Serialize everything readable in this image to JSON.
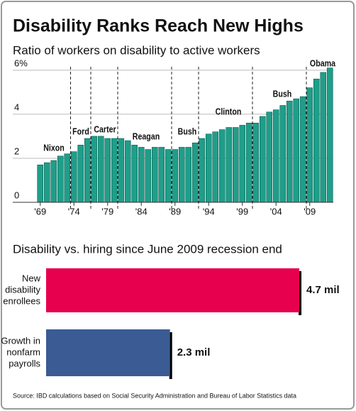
{
  "chart_data": [
    {
      "type": "bar",
      "title": "Disability Ranks Reach New Highs",
      "subtitle": "Ratio of workers on disability to active workers",
      "categories": [
        "'69",
        null,
        null,
        null,
        null,
        "'74",
        null,
        null,
        null,
        null,
        "'79",
        null,
        null,
        null,
        null,
        "'84",
        null,
        null,
        null,
        null,
        "'89",
        null,
        null,
        null,
        null,
        "'94",
        null,
        null,
        null,
        null,
        "'99",
        null,
        null,
        null,
        null,
        "'04",
        null,
        null,
        null,
        null,
        "'09",
        null,
        null,
        null
      ],
      "values": [
        1.7,
        1.8,
        1.9,
        2.1,
        2.2,
        2.3,
        2.6,
        2.9,
        3.0,
        3.0,
        2.9,
        2.9,
        2.9,
        2.8,
        2.6,
        2.5,
        2.4,
        2.5,
        2.5,
        2.4,
        2.4,
        2.5,
        2.5,
        2.7,
        2.9,
        3.1,
        3.2,
        3.3,
        3.4,
        3.4,
        3.5,
        3.6,
        3.6,
        3.9,
        4.1,
        4.2,
        4.4,
        4.6,
        4.7,
        4.8,
        5.2,
        5.6,
        5.9,
        6.1
      ],
      "color": "#1f9e8a",
      "ylim": [
        0,
        6.2
      ],
      "yticks": [
        0,
        2,
        4,
        {
          "value": 6,
          "label": "6%"
        }
      ],
      "grid": true,
      "annotations": [
        "Nixon",
        "Ford",
        "Carter",
        "Reagan",
        "Bush",
        "Clinton",
        "Bush",
        "Obama"
      ]
    },
    {
      "type": "hbar",
      "title": "Disability vs. hiring since June 2009 recession end",
      "categories": [
        [
          "New",
          "disability",
          "enrollees"
        ],
        [
          "Growth in",
          "nonfarm",
          "payrolls"
        ]
      ],
      "values": [
        4.7,
        2.3
      ],
      "value_labels": [
        "4.7 mil",
        "2.3 mil"
      ],
      "colors": [
        "#e6004e",
        "#3b5b94"
      ],
      "xlim": [
        0,
        5.2
      ],
      "source": "Source: IBD calculations based on Social Security Administration and Bureau of Labor Statistics data"
    }
  ]
}
